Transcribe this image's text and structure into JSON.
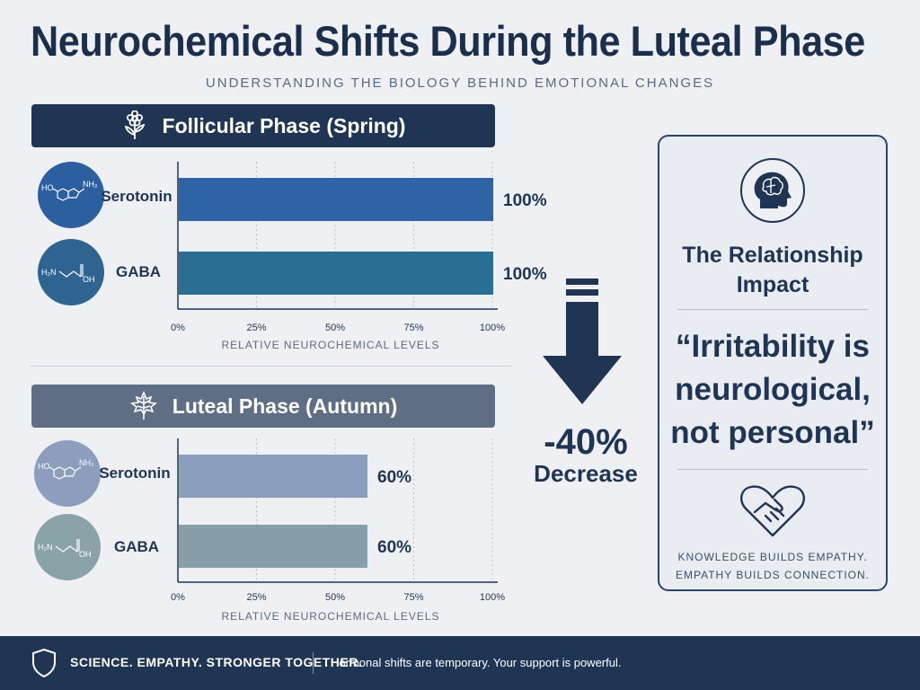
{
  "title": "Neurochemical Shifts During the Luteal Phase",
  "subtitle": "UNDERSTANDING THE BIOLOGY BEHIND EMOTIONAL CHANGES",
  "colors": {
    "navy": "#1f3553",
    "slate": "#5f6e84",
    "serotonin_follicular": "#2e63a6",
    "gaba_follicular": "#2a6f93",
    "serotonin_luteal": "#8c9ebe",
    "gaba_luteal": "#889fa8"
  },
  "chart_data": [
    {
      "type": "bar",
      "orientation": "horizontal",
      "title": "Follicular Phase (Spring)",
      "icon": "flower-icon",
      "categories": [
        "Serotonin",
        "GABA"
      ],
      "values": [
        100,
        100
      ],
      "value_labels": [
        "100%",
        "100%"
      ],
      "xlabel": "RELATIVE NEUROCHEMICAL LEVELS",
      "xlim": [
        0,
        100
      ],
      "xticks": [
        "0%",
        "25%",
        "50%",
        "75%",
        "100%"
      ],
      "grid": true
    },
    {
      "type": "bar",
      "orientation": "horizontal",
      "title": "Luteal Phase (Autumn)",
      "icon": "leaf-icon",
      "categories": [
        "Serotonin",
        "GABA"
      ],
      "values": [
        60,
        60
      ],
      "value_labels": [
        "60%",
        "60%"
      ],
      "xlabel": "RELATIVE NEUROCHEMICAL LEVELS",
      "xlim": [
        0,
        100
      ],
      "xticks": [
        "0%",
        "25%",
        "50%",
        "75%",
        "100%"
      ],
      "grid": true
    }
  ],
  "molecules": {
    "serotonin": {
      "left": "HO",
      "right": "NH₂"
    },
    "gaba": {
      "left": "H₂N",
      "right": "OH"
    }
  },
  "change": {
    "percent": "-40%",
    "label": "Decrease"
  },
  "card": {
    "title_line1": "The Relationship",
    "title_line2": "Impact",
    "quote_line1": "“Irritability is",
    "quote_line2": "neurological,",
    "quote_line3": "not personal”",
    "foot_line1": "KNOWLEDGE BUILDS EMPATHY.",
    "foot_line2": "EMPATHY BUILDS CONNECTION."
  },
  "footer": {
    "tagline": "SCIENCE. EMPATHY. STRONGER TOGETHER.",
    "message": "Hormonal shifts are temporary. Your support is powerful."
  }
}
